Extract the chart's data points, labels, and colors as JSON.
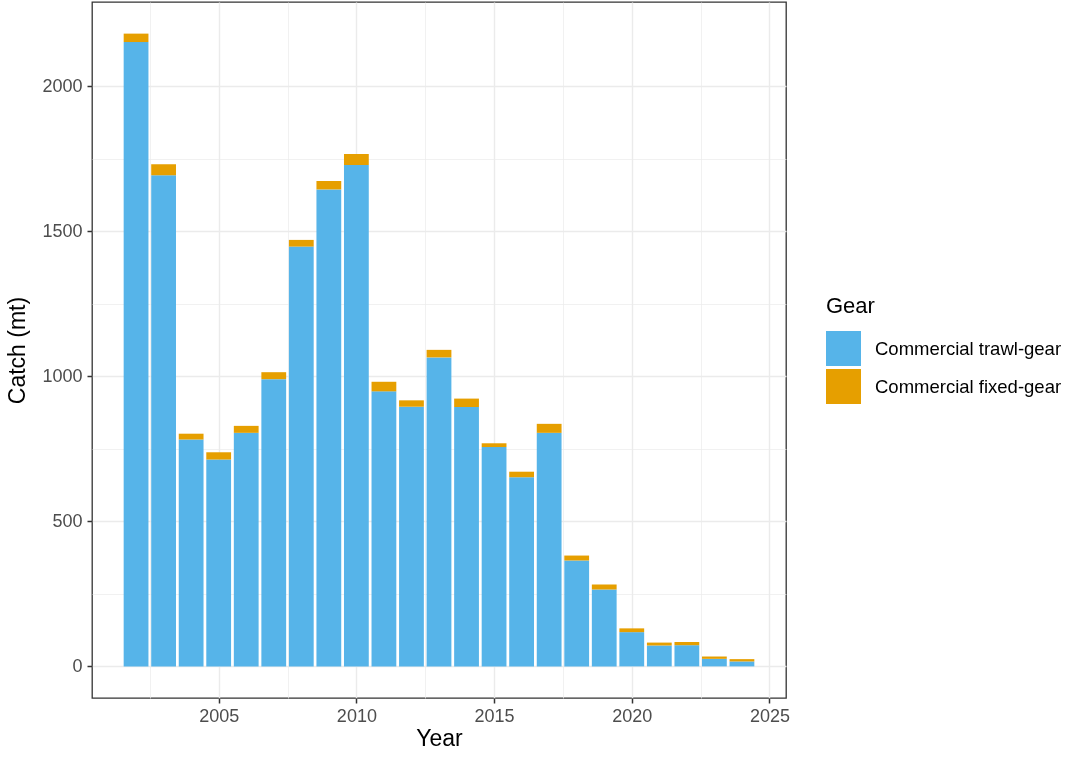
{
  "chart_data": {
    "type": "bar",
    "xlabel": "Year",
    "ylabel": "Catch (mt)",
    "legend_title": "Gear",
    "x": [
      2002,
      2003,
      2004,
      2005,
      2006,
      2007,
      2008,
      2009,
      2010,
      2011,
      2012,
      2013,
      2014,
      2015,
      2016,
      2017,
      2018,
      2019,
      2020,
      2021,
      2022,
      2023,
      2024
    ],
    "series": [
      {
        "name": "Commercial trawl-gear",
        "color": "#56b4e9",
        "values": [
          2152,
          1693,
          782,
          713,
          805,
          990,
          1447,
          1644,
          1728,
          948,
          895,
          1065,
          894,
          756,
          652,
          805,
          365,
          265,
          118,
          72,
          73,
          26,
          17
        ]
      },
      {
        "name": "Commercial fixed-gear",
        "color": "#e69f00",
        "values": [
          29,
          38,
          20,
          25,
          24,
          24,
          23,
          29,
          38,
          33,
          22,
          26,
          29,
          13,
          19,
          31,
          17,
          17,
          13,
          10,
          11,
          8,
          8
        ]
      }
    ],
    "stacked": true,
    "xlim": [
      2000.4,
      2025.6
    ],
    "xticks": [
      {
        "value": 2002.5,
        "label": null
      },
      2005,
      {
        "value": 2007.5,
        "label": null
      },
      2010,
      {
        "value": 2012.5,
        "label": null
      },
      2015,
      {
        "value": 2017.5,
        "label": null
      },
      2020,
      {
        "value": 2022.5,
        "label": null
      },
      2025
    ],
    "ylim": [
      -109,
      2290
    ],
    "yticks": [
      0,
      {
        "value": 250,
        "label": null
      },
      500,
      {
        "value": 750,
        "label": null
      },
      1000,
      {
        "value": 1250,
        "label": null
      },
      1500,
      {
        "value": 1750,
        "label": null
      },
      2000
    ],
    "grid": true,
    "legend": "right"
  }
}
